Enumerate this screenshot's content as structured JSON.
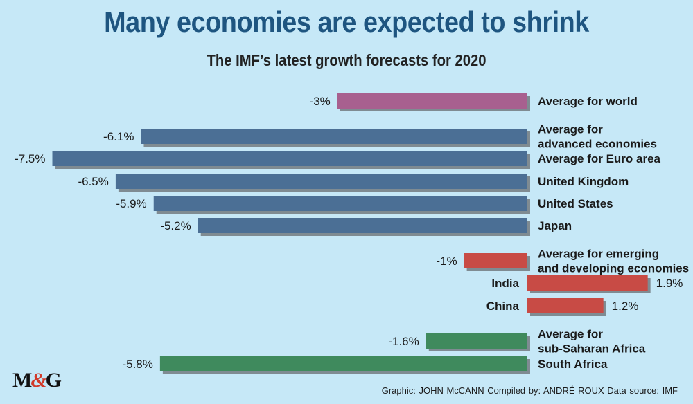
{
  "title": "Many economies are expected to shrink",
  "subtitle": "The IMF’s latest growth forecasts for 2020",
  "logo": {
    "m": "M",
    "amp": "&",
    "g": "G"
  },
  "credits": "Graphic: JOHN McCANN  Compiled by: ANDRÉ ROUX  Data source: IMF",
  "colors": {
    "background": "#c6e8f7",
    "world": "#a8608f",
    "advanced": "#4b6f95",
    "emerging": "#c84b45",
    "africa": "#3f8a5d",
    "shadow": "#7f8b92"
  },
  "chart_data": {
    "type": "bar",
    "orientation": "horizontal",
    "unit": "%",
    "title": "Many economies are expected to shrink",
    "subtitle": "The IMF’s latest growth forecasts for 2020",
    "xlim": [
      -7.5,
      1.9
    ],
    "grid": false,
    "legend": "none",
    "bars": [
      {
        "category": [
          "Average for world"
        ],
        "value": -3,
        "value_label": "-3%",
        "group": "world"
      },
      {
        "category": [
          "Average for",
          "advanced economies"
        ],
        "value": -6.1,
        "value_label": "-6.1%",
        "group": "advanced"
      },
      {
        "category": [
          "Average for Euro area"
        ],
        "value": -7.5,
        "value_label": "-7.5%",
        "group": "advanced"
      },
      {
        "category": [
          "United Kingdom"
        ],
        "value": -6.5,
        "value_label": "-6.5%",
        "group": "advanced"
      },
      {
        "category": [
          "United States"
        ],
        "value": -5.9,
        "value_label": "-5.9%",
        "group": "advanced"
      },
      {
        "category": [
          "Japan"
        ],
        "value": -5.2,
        "value_label": "-5.2%",
        "group": "advanced"
      },
      {
        "category": [
          "Average for emerging",
          "and developing economies"
        ],
        "value": -1,
        "value_label": "-1%",
        "group": "emerging"
      },
      {
        "category": [
          "India"
        ],
        "value": 1.9,
        "value_label": "1.9%",
        "group": "emerging"
      },
      {
        "category": [
          "China"
        ],
        "value": 1.2,
        "value_label": "1.2%",
        "group": "emerging"
      },
      {
        "category": [
          "Average for",
          "sub-Saharan Africa"
        ],
        "value": -1.6,
        "value_label": "-1.6%",
        "group": "africa"
      },
      {
        "category": [
          "South Africa"
        ],
        "value": -5.8,
        "value_label": "-5.8%",
        "group": "africa"
      }
    ]
  }
}
